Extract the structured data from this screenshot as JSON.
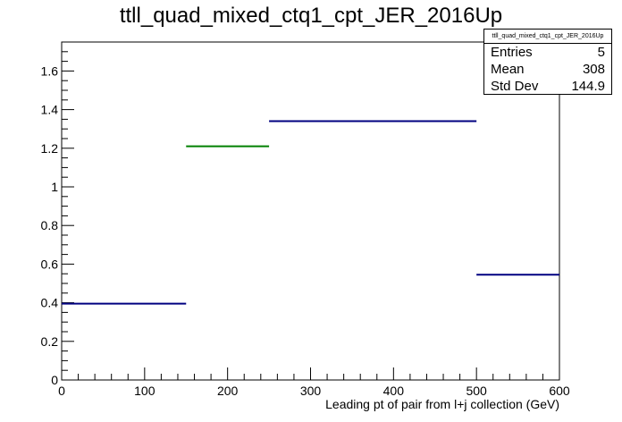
{
  "chart_data": {
    "type": "bar",
    "title": "ttll_quad_mixed_ctq1_cpt_JER_2016Up",
    "xlabel": "Leading pt of pair from l+j collection (GeV)",
    "ylabel": "",
    "xlim": [
      0,
      600
    ],
    "ylim": [
      0,
      1.75
    ],
    "x_ticks": [
      0,
      100,
      200,
      300,
      400,
      500,
      600
    ],
    "y_ticks": [
      0,
      0.2,
      0.4,
      0.6,
      0.8,
      1,
      1.2,
      1.4,
      1.6
    ],
    "x_tick_labels": [
      "0",
      "100",
      "200",
      "300",
      "400",
      "500",
      "600"
    ],
    "y_tick_labels": [
      "0",
      "0.2",
      "0.4",
      "0.6",
      "0.8",
      "1",
      "1.2",
      "1.4",
      "1.6"
    ],
    "bins": [
      {
        "low": 0,
        "high": 150,
        "value": 0.395,
        "color": "#000080"
      },
      {
        "low": 150,
        "high": 250,
        "value": 1.21,
        "color": "#008000"
      },
      {
        "low": 250,
        "high": 500,
        "value": 1.34,
        "color": "#000080"
      },
      {
        "low": 500,
        "high": 600,
        "value": 0.545,
        "color": "#000080"
      }
    ],
    "grid": false,
    "stats_box": {
      "name": "ttll_quad_mixed_ctq1_cpt_JER_2016Up",
      "rows": [
        {
          "label": "Entries",
          "value": "5"
        },
        {
          "label": "Mean",
          "value": "308"
        },
        {
          "label": "Std Dev",
          "value": "144.9"
        }
      ]
    }
  }
}
